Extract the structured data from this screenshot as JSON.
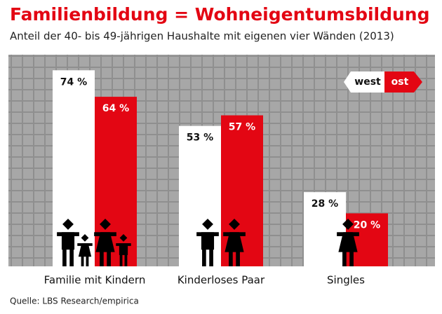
{
  "chart_data": {
    "type": "bar",
    "title": "Familienbildung = Wohneigentumsbildung",
    "subtitle": "Anteil der 40- bis 49-jährigen Haushalte mit eigenen vier Wänden (2013)",
    "categories": [
      "Familie mit Kindern",
      "Kinderloses Paar",
      "Singles"
    ],
    "series": [
      {
        "name": "west",
        "color": "#ffffff",
        "values": [
          74,
          53,
          28
        ],
        "value_labels": [
          "74 %",
          "53 %",
          "28 %"
        ]
      },
      {
        "name": "ost",
        "color": "#e30613",
        "values": [
          64,
          57,
          20
        ],
        "value_labels": [
          "64 %",
          "57 %",
          "20 %"
        ]
      }
    ],
    "source": "Quelle: LBS Research/empirica"
  }
}
